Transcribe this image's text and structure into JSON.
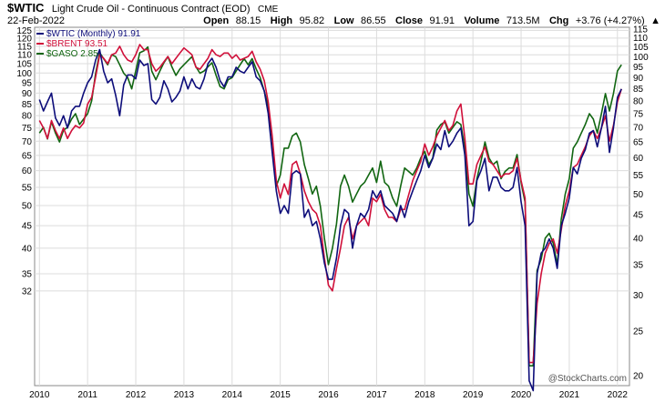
{
  "header": {
    "symbol": "$WTIC",
    "description": "Light Crude Oil - Continuous Contract (EOD)",
    "exchange": "CME",
    "date": "22-Feb-2022",
    "open_label": "Open",
    "open": "88.15",
    "high_label": "High",
    "high": "95.82",
    "low_label": "Low",
    "low": "86.55",
    "close_label": "Close",
    "close": "91.91",
    "volume_label": "Volume",
    "volume": "713.5M",
    "chg_label": "Chg",
    "chg": "+3.76 (+4.27%)",
    "chg_arrow": "▲"
  },
  "watermark": "@StockCharts.com",
  "colors": {
    "wtic": "#0d0d7a",
    "brent": "#d0103a",
    "gaso": "#116611",
    "grid": "#dcdcdc",
    "chg": "#007a00"
  },
  "legend": [
    {
      "label": "$WTIC (Monthly) 91.91",
      "color": "#0d0d7a"
    },
    {
      "label": "$BRENT 93.51",
      "color": "#d0103a"
    },
    {
      "label": "$GASO 2.85",
      "color": "#116611"
    }
  ],
  "chart_data": {
    "type": "line",
    "x_labels": [
      "2010",
      "2011",
      "2012",
      "2013",
      "2014",
      "2015",
      "2016",
      "2017",
      "2018",
      "2019",
      "2020",
      "2021",
      "2022"
    ],
    "left_axis": {
      "scale": "log",
      "range": [
        19.5,
        127
      ],
      "ticks": [
        125,
        120,
        115,
        110,
        105,
        100,
        95,
        90,
        85,
        80,
        75,
        70,
        65,
        60,
        55,
        50,
        45,
        40,
        35,
        32
      ]
    },
    "right_axis": {
      "scale": "log",
      "range": [
        19,
        116
      ],
      "ticks": [
        115,
        110,
        105,
        100,
        95,
        90,
        85,
        80,
        75,
        70,
        65,
        60,
        55,
        50,
        45,
        40,
        35,
        30,
        25,
        20
      ]
    },
    "grid": true,
    "legend_position": "top-left",
    "series": [
      {
        "name": "$WTIC",
        "axis": "left",
        "x": [
          2010.0,
          2010.083,
          2010.167,
          2010.25,
          2010.333,
          2010.417,
          2010.5,
          2010.583,
          2010.667,
          2010.75,
          2010.833,
          2010.917,
          2011.0,
          2011.083,
          2011.167,
          2011.25,
          2011.333,
          2011.417,
          2011.5,
          2011.583,
          2011.667,
          2011.75,
          2011.833,
          2011.917,
          2012.0,
          2012.083,
          2012.167,
          2012.25,
          2012.333,
          2012.417,
          2012.5,
          2012.583,
          2012.667,
          2012.75,
          2012.833,
          2012.917,
          2013.0,
          2013.083,
          2013.167,
          2013.25,
          2013.333,
          2013.417,
          2013.5,
          2013.583,
          2013.667,
          2013.75,
          2013.833,
          2013.917,
          2014.0,
          2014.083,
          2014.167,
          2014.25,
          2014.333,
          2014.417,
          2014.5,
          2014.583,
          2014.667,
          2014.75,
          2014.833,
          2014.917,
          2015.0,
          2015.083,
          2015.167,
          2015.25,
          2015.333,
          2015.417,
          2015.5,
          2015.583,
          2015.667,
          2015.75,
          2015.833,
          2015.917,
          2016.0,
          2016.083,
          2016.167,
          2016.25,
          2016.333,
          2016.417,
          2016.5,
          2016.583,
          2016.667,
          2016.75,
          2016.833,
          2016.917,
          2017.0,
          2017.083,
          2017.167,
          2017.25,
          2017.333,
          2017.417,
          2017.5,
          2017.583,
          2017.667,
          2017.75,
          2017.833,
          2017.917,
          2018.0,
          2018.083,
          2018.167,
          2018.25,
          2018.333,
          2018.417,
          2018.5,
          2018.583,
          2018.667,
          2018.75,
          2018.833,
          2018.917,
          2019.0,
          2019.083,
          2019.167,
          2019.25,
          2019.333,
          2019.417,
          2019.5,
          2019.583,
          2019.667,
          2019.75,
          2019.833,
          2019.917,
          2020.0,
          2020.083,
          2020.167,
          2020.25,
          2020.333,
          2020.417,
          2020.5,
          2020.583,
          2020.667,
          2020.75,
          2020.833,
          2020.917,
          2021.0,
          2021.083,
          2021.167,
          2021.25,
          2021.333,
          2021.417,
          2021.5,
          2021.583,
          2021.667,
          2021.75,
          2021.833,
          2021.917,
          2022.0,
          2022.083
        ],
        "values": [
          87,
          82,
          86,
          90,
          79,
          76,
          80,
          75,
          82,
          84,
          84,
          90,
          95,
          98,
          107,
          113,
          101,
          95,
          97,
          89,
          80,
          94,
          99,
          99,
          97,
          107,
          104,
          105,
          87,
          85,
          88,
          96,
          92,
          86,
          88,
          91,
          98,
          92,
          97,
          93,
          92,
          97,
          105,
          108,
          103,
          96,
          93,
          98,
          98,
          103,
          101,
          100,
          103,
          106,
          98,
          96,
          91,
          81,
          66,
          54,
          48,
          50,
          48,
          59,
          60,
          59,
          47,
          49,
          45,
          46,
          42,
          37,
          34,
          34,
          38,
          45,
          49,
          48,
          40,
          45,
          48,
          47,
          49,
          54,
          52,
          54,
          50,
          49,
          48,
          46,
          50,
          47,
          51,
          54,
          57,
          60,
          65,
          61,
          64,
          69,
          67,
          74,
          68,
          70,
          73,
          75,
          65,
          45,
          46,
          57,
          60,
          64,
          54,
          58,
          58,
          55,
          54,
          54,
          55,
          61,
          51,
          45,
          20,
          19,
          35,
          39,
          40,
          42,
          40,
          36,
          45,
          48,
          52,
          61,
          59,
          64,
          67,
          73,
          74,
          68,
          75,
          84,
          66,
          75,
          88,
          92
        ]
      },
      {
        "name": "$BRENT",
        "axis": "left",
        "x": [
          2010.0,
          2010.083,
          2010.167,
          2010.25,
          2010.333,
          2010.417,
          2010.5,
          2010.583,
          2010.667,
          2010.75,
          2010.833,
          2010.917,
          2011.0,
          2011.083,
          2011.167,
          2011.25,
          2011.333,
          2011.417,
          2011.5,
          2011.583,
          2011.667,
          2011.75,
          2011.833,
          2011.917,
          2012.0,
          2012.083,
          2012.167,
          2012.25,
          2012.333,
          2012.417,
          2012.5,
          2012.583,
          2012.667,
          2012.75,
          2012.833,
          2012.917,
          2013.0,
          2013.083,
          2013.167,
          2013.25,
          2013.333,
          2013.417,
          2013.5,
          2013.583,
          2013.667,
          2013.75,
          2013.833,
          2013.917,
          2014.0,
          2014.083,
          2014.167,
          2014.25,
          2014.333,
          2014.417,
          2014.5,
          2014.583,
          2014.667,
          2014.75,
          2014.833,
          2014.917,
          2015.0,
          2015.083,
          2015.167,
          2015.25,
          2015.333,
          2015.417,
          2015.5,
          2015.583,
          2015.667,
          2015.75,
          2015.833,
          2015.917,
          2016.0,
          2016.083,
          2016.167,
          2016.25,
          2016.333,
          2016.417,
          2016.5,
          2016.583,
          2016.667,
          2016.75,
          2016.833,
          2016.917,
          2017.0,
          2017.083,
          2017.167,
          2017.25,
          2017.333,
          2017.417,
          2017.5,
          2017.583,
          2017.667,
          2017.75,
          2017.833,
          2017.917,
          2018.0,
          2018.083,
          2018.167,
          2018.25,
          2018.333,
          2018.417,
          2018.5,
          2018.583,
          2018.667,
          2018.75,
          2018.833,
          2018.917,
          2019.0,
          2019.083,
          2019.167,
          2019.25,
          2019.333,
          2019.417,
          2019.5,
          2019.583,
          2019.667,
          2019.75,
          2019.833,
          2019.917,
          2020.0,
          2020.083,
          2020.167,
          2020.25,
          2020.333,
          2020.417,
          2020.5,
          2020.583,
          2020.667,
          2020.75,
          2020.833,
          2020.917,
          2021.0,
          2021.083,
          2021.167,
          2021.25,
          2021.333,
          2021.417,
          2021.5,
          2021.583,
          2021.667,
          2021.75,
          2021.833,
          2021.917,
          2022.0,
          2022.083
        ],
        "values": [
          78,
          75,
          71,
          78,
          74,
          71,
          75,
          71,
          74,
          76,
          75,
          77,
          85,
          88,
          98,
          110,
          108,
          105,
          110,
          111,
          115,
          110,
          107,
          106,
          110,
          116,
          113,
          113,
          105,
          101,
          103,
          106,
          109,
          105,
          108,
          111,
          114,
          112,
          110,
          103,
          102,
          105,
          108,
          113,
          110,
          109,
          111,
          111,
          108,
          110,
          107,
          108,
          109,
          112,
          106,
          102,
          96,
          86,
          72,
          57,
          52,
          56,
          53,
          62,
          63,
          59,
          54,
          51,
          49,
          48,
          45,
          38,
          33,
          32,
          36,
          40,
          45,
          47,
          42,
          45,
          46,
          47,
          45,
          52,
          51,
          53,
          49,
          47,
          47,
          46,
          49,
          49,
          53,
          57,
          60,
          63,
          69,
          65,
          68,
          72,
          75,
          78,
          74,
          76,
          82,
          85,
          71,
          56,
          56,
          62,
          65,
          68,
          63,
          62,
          60,
          58,
          59,
          59,
          60,
          64,
          57,
          52,
          22,
          22,
          30,
          35,
          39,
          41,
          42,
          39,
          44,
          50,
          54,
          61,
          62,
          65,
          68,
          72,
          74,
          71,
          75,
          80,
          70,
          76,
          86,
          92
        ]
      },
      {
        "name": "$GASO",
        "axis": "right",
        "x": [
          2010.0,
          2010.083,
          2010.167,
          2010.25,
          2010.333,
          2010.417,
          2010.5,
          2010.583,
          2010.667,
          2010.75,
          2010.833,
          2010.917,
          2011.0,
          2011.083,
          2011.167,
          2011.25,
          2011.333,
          2011.417,
          2011.5,
          2011.583,
          2011.667,
          2011.75,
          2011.833,
          2011.917,
          2012.0,
          2012.083,
          2012.167,
          2012.25,
          2012.333,
          2012.417,
          2012.5,
          2012.583,
          2012.667,
          2012.75,
          2012.833,
          2012.917,
          2013.0,
          2013.083,
          2013.167,
          2013.25,
          2013.333,
          2013.417,
          2013.5,
          2013.583,
          2013.667,
          2013.75,
          2013.833,
          2013.917,
          2014.0,
          2014.083,
          2014.167,
          2014.25,
          2014.333,
          2014.417,
          2014.5,
          2014.583,
          2014.667,
          2014.75,
          2014.833,
          2014.917,
          2015.0,
          2015.083,
          2015.167,
          2015.25,
          2015.333,
          2015.417,
          2015.5,
          2015.583,
          2015.667,
          2015.75,
          2015.833,
          2015.917,
          2016.0,
          2016.083,
          2016.167,
          2016.25,
          2016.333,
          2016.417,
          2016.5,
          2016.583,
          2016.667,
          2016.75,
          2016.833,
          2016.917,
          2017.0,
          2017.083,
          2017.167,
          2017.25,
          2017.333,
          2017.417,
          2017.5,
          2017.583,
          2017.667,
          2017.75,
          2017.833,
          2017.917,
          2018.0,
          2018.083,
          2018.167,
          2018.25,
          2018.333,
          2018.417,
          2018.5,
          2018.583,
          2018.667,
          2018.75,
          2018.833,
          2018.917,
          2019.0,
          2019.083,
          2019.167,
          2019.25,
          2019.333,
          2019.417,
          2019.5,
          2019.583,
          2019.667,
          2019.75,
          2019.833,
          2019.917,
          2020.0,
          2020.083,
          2020.167,
          2020.25,
          2020.333,
          2020.417,
          2020.5,
          2020.583,
          2020.667,
          2020.75,
          2020.833,
          2020.917,
          2021.0,
          2021.083,
          2021.167,
          2021.25,
          2021.333,
          2021.417,
          2021.5,
          2021.583,
          2021.667,
          2021.75,
          2021.833,
          2021.917,
          2022.0,
          2022.083
        ],
        "values": [
          68,
          70,
          66,
          72,
          68,
          65,
          69,
          70,
          73,
          75,
          71,
          73,
          75,
          80,
          92,
          102,
          99,
          96,
          101,
          100,
          96,
          92,
          90,
          85,
          93,
          102,
          103,
          105,
          93,
          89,
          93,
          97,
          100,
          95,
          91,
          94,
          96,
          98,
          100,
          95,
          92,
          93,
          95,
          97,
          91,
          86,
          85,
          89,
          90,
          93,
          96,
          99,
          96,
          99,
          94,
          90,
          84,
          78,
          66,
          52,
          55,
          63,
          63,
          67,
          68,
          65,
          58,
          54,
          50,
          52,
          47,
          40,
          35,
          38,
          43,
          52,
          55,
          52,
          48,
          50,
          52,
          53,
          55,
          57,
          53,
          59,
          53,
          52,
          49,
          47,
          52,
          57,
          56,
          55,
          57,
          60,
          62,
          58,
          60,
          69,
          71,
          72,
          68,
          70,
          72,
          71,
          63,
          50,
          47,
          54,
          59,
          65,
          60,
          58,
          59,
          54,
          56,
          57,
          57,
          61,
          53,
          48,
          21,
          21,
          34,
          36,
          40,
          41,
          39,
          35,
          44,
          50,
          54,
          63,
          65,
          68,
          71,
          75,
          73,
          68,
          75,
          83,
          76,
          83,
          93,
          96
        ]
      }
    ]
  }
}
